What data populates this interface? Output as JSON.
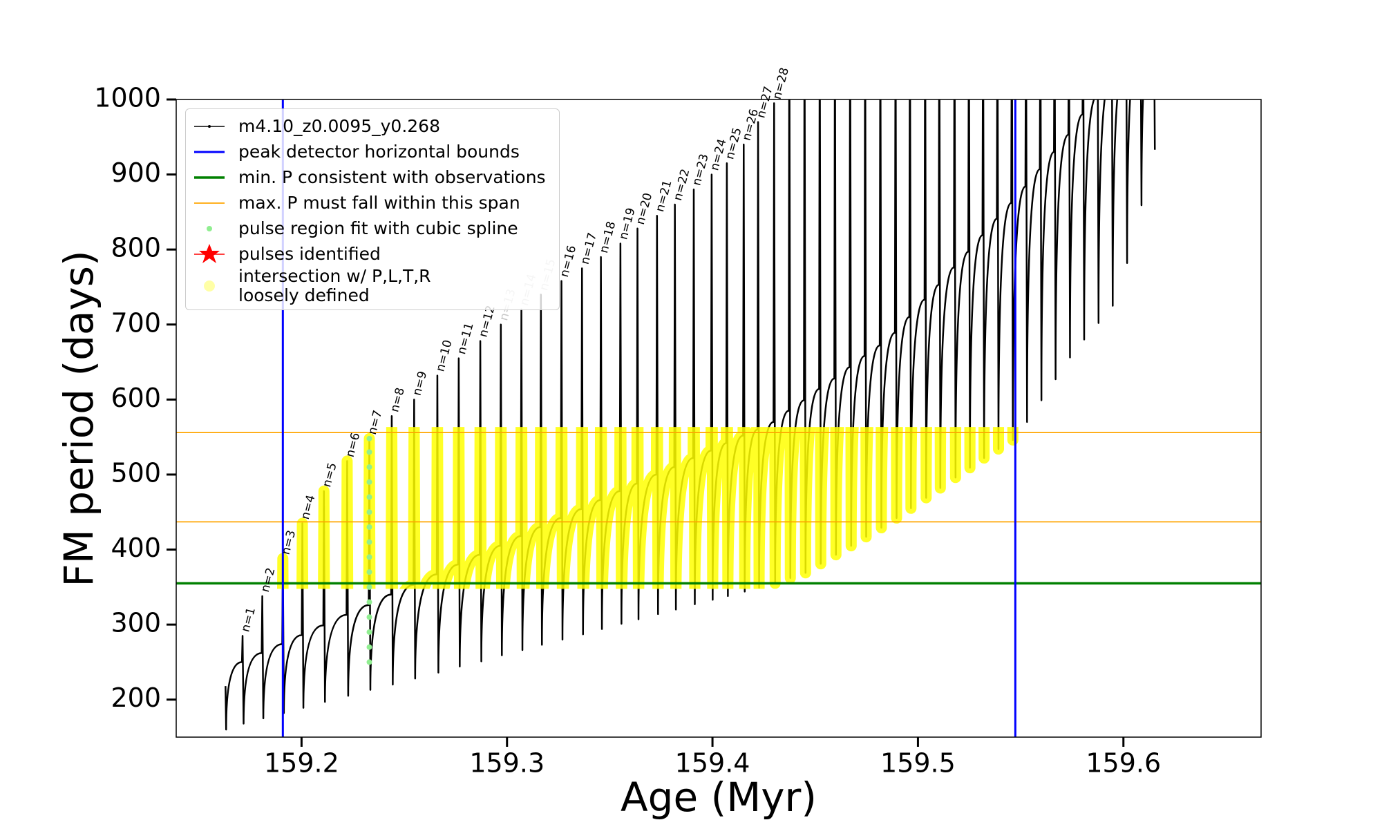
{
  "chart_data": {
    "type": "line",
    "x_label": "Age (Myr)",
    "y_label": "FM period (days)",
    "xlim": [
      159.139,
      159.667
    ],
    "ylim": [
      150,
      1000
    ],
    "xticks": [
      159.2,
      159.3,
      159.4,
      159.5,
      159.6
    ],
    "yticks": [
      200,
      300,
      400,
      500,
      600,
      700,
      800,
      900,
      1000
    ],
    "series": [
      {
        "name": "m4.10_z0.0095_y0.268",
        "color": "#000000",
        "kind": "track",
        "x": [
          159.163,
          159.1633,
          159.171,
          159.1713,
          159.1718,
          159.1806,
          159.1809,
          159.1814,
          159.1906,
          159.1909,
          159.1914,
          159.2001,
          159.2004,
          159.2009,
          159.2106,
          159.2109,
          159.2114,
          159.2219,
          159.2222,
          159.2227,
          159.2327,
          159.233,
          159.2335,
          159.2436,
          159.2439,
          159.2444,
          159.2545,
          159.2548,
          159.2553,
          159.2658,
          159.2661,
          159.2666,
          159.2762,
          159.2765,
          159.277,
          159.2867,
          159.287,
          159.2875,
          159.2967,
          159.297,
          159.2975,
          159.3067,
          159.307,
          159.3075,
          159.3162,
          159.3165,
          159.317,
          159.3262,
          159.3265,
          159.327,
          159.3362,
          159.3365,
          159.337,
          159.3454,
          159.3457,
          159.3462,
          159.3549,
          159.3552,
          159.3557,
          159.3632,
          159.3635,
          159.364,
          159.3727,
          159.373,
          159.3735,
          159.3814,
          159.3817,
          159.3822,
          159.3906,
          159.3909,
          159.3914,
          159.3993,
          159.3996,
          159.4001,
          159.4067,
          159.407,
          159.4075,
          159.4149,
          159.4152,
          159.4157,
          159.4219,
          159.4222,
          159.4227,
          159.4297,
          159.43,
          159.4305,
          159.4371,
          159.4374,
          159.4379,
          159.4445,
          159.4448,
          159.4453,
          159.4519,
          159.4522,
          159.4527,
          159.4593,
          159.4596,
          159.4601,
          159.4667,
          159.467,
          159.4675,
          159.474,
          159.4743,
          159.4748,
          159.4814,
          159.4817,
          159.4822,
          159.4888,
          159.4891,
          159.4896,
          159.4958,
          159.4961,
          159.4966,
          159.5032,
          159.5035,
          159.504,
          159.5101,
          159.5104,
          159.5109,
          159.5175,
          159.5178,
          159.5183,
          159.5245,
          159.5248,
          159.5253,
          159.5314,
          159.5317,
          159.5322,
          159.5384,
          159.5387,
          159.5392,
          159.5454,
          159.5457,
          159.5462,
          159.5523,
          159.5526,
          159.5531,
          159.5593,
          159.5596,
          159.5601,
          159.5662,
          159.5665,
          159.567,
          159.5732,
          159.5735,
          159.574,
          159.5801,
          159.5804,
          159.5809,
          159.5871,
          159.5874,
          159.5879,
          159.594,
          159.5943,
          159.5948,
          159.601,
          159.6013,
          159.6018,
          159.608,
          159.6083,
          159.6088,
          159.6145,
          159.6148,
          159.6153
        ],
        "values": [
          218,
          160,
          250,
          285,
          168,
          262,
          338,
          175,
          274,
          388,
          182,
          286,
          435,
          189,
          299,
          478,
          197,
          313,
          518,
          205,
          326,
          548,
          213,
          340,
          578,
          220,
          353,
          600,
          228,
          367,
          632,
          236,
          380,
          655,
          244,
          393,
          678,
          251,
          405,
          700,
          259,
          418,
          720,
          266,
          430,
          740,
          273,
          442,
          758,
          280,
          454,
          775,
          287,
          466,
          790,
          294,
          478,
          808,
          301,
          488,
          828,
          307,
          500,
          845,
          314,
          510,
          860,
          320,
          522,
          880,
          327,
          532,
          900,
          333,
          542,
          915,
          338,
          552,
          940,
          344,
          560,
          970,
          349,
          570,
          995,
          355,
          585,
          1150,
          362,
          599,
          1150,
          369,
          614,
          1150,
          381,
          628,
          1150,
          393,
          643,
          1150,
          405,
          658,
          1150,
          417,
          672,
          1150,
          429,
          689,
          1150,
          442,
          710,
          1150,
          455,
          733,
          1150,
          469,
          753,
          1150,
          482,
          776,
          1150,
          496,
          797,
          1150,
          509,
          819,
          1150,
          522,
          841,
          1150,
          534,
          862,
          1150,
          546,
          884,
          1150,
          570,
          907,
          1150,
          599,
          930,
          1150,
          627,
          953,
          1150,
          656,
          980,
          1150,
          680,
          1005,
          1150,
          702,
          1030,
          1150,
          725,
          1055,
          1150,
          782,
          1080,
          1150,
          859,
          1100,
          1150,
          933
        ]
      },
      {
        "name": "peak detector horizontal bounds",
        "color": "#0000ff",
        "kind": "vline",
        "linewidth": 3,
        "values": [
          159.1909,
          159.5474
        ]
      },
      {
        "name": "min. P consistent with observations",
        "color": "#008000",
        "kind": "hline",
        "linewidth": 3.5,
        "values": [
          355
        ]
      },
      {
        "name": "max. P must fall within this span",
        "color": "#ffa500",
        "kind": "hline",
        "linewidth": 1.8,
        "values": [
          437,
          556
        ]
      },
      {
        "name": "pulse region fit with cubic spline",
        "color": "#90ee90",
        "kind": "scatter",
        "x": [
          159.233,
          159.233,
          159.233,
          159.233,
          159.233,
          159.233,
          159.233,
          159.233,
          159.233,
          159.233,
          159.233,
          159.233,
          159.233,
          159.233,
          159.233,
          159.233
        ],
        "values": [
          250,
          270,
          290,
          310,
          330,
          350,
          370,
          390,
          410,
          430,
          450,
          470,
          490,
          510,
          530,
          548
        ]
      },
      {
        "name": "pulses identified",
        "color": "#ff0000",
        "kind": "star"
      },
      {
        "name": "intersection w/ P,L,T,R\nloosely defined",
        "color": "#ffff00",
        "kind": "band"
      }
    ],
    "pulse_labels": [
      {
        "text": "n=1",
        "color": "#000000"
      },
      {
        "text": "n=2",
        "color": "#000000"
      },
      {
        "text": "n=3",
        "color": "#000000"
      },
      {
        "text": "n=4",
        "color": "#000000"
      },
      {
        "text": "n=5",
        "color": "#000000"
      },
      {
        "text": "n=6",
        "color": "#000000"
      },
      {
        "text": "n=7",
        "color": "#000000"
      },
      {
        "text": "n=8",
        "color": "#000000"
      },
      {
        "text": "n=9",
        "color": "#000000"
      },
      {
        "text": "n=10",
        "color": "#000000"
      },
      {
        "text": "n=11",
        "color": "#000000"
      },
      {
        "text": "n=12",
        "color": "#000000"
      },
      {
        "text": "n=13",
        "color": "#c8c8c8"
      },
      {
        "text": "n=14",
        "color": "#c8c8c8"
      },
      {
        "text": "n=15",
        "color": "#c8c8c8"
      },
      {
        "text": "n=16",
        "color": "#000000"
      },
      {
        "text": "n=17",
        "color": "#000000"
      },
      {
        "text": "n=18",
        "color": "#000000"
      },
      {
        "text": "n=19",
        "color": "#000000"
      },
      {
        "text": "n=20",
        "color": "#000000"
      },
      {
        "text": "n=21",
        "color": "#000000"
      },
      {
        "text": "n=22",
        "color": "#000000"
      },
      {
        "text": "n=23",
        "color": "#000000"
      },
      {
        "text": "n=24",
        "color": "#000000"
      },
      {
        "text": "n=25",
        "color": "#000000"
      },
      {
        "text": "n=26",
        "color": "#000000"
      },
      {
        "text": "n=27",
        "color": "#000000"
      },
      {
        "text": "n=28",
        "color": "#000000"
      }
    ]
  }
}
